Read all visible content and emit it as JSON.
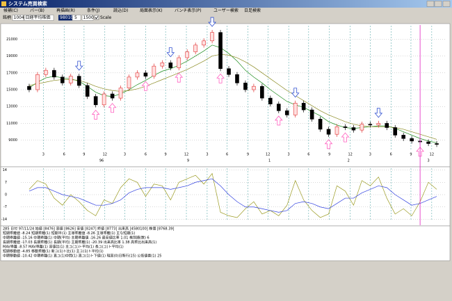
{
  "window": {
    "title": "システム売買検索"
  },
  "menu": [
    "候補(C)",
    "バー(B)",
    "再描画(R)",
    "条件(J)",
    "読込(D)",
    "局面表示(K)",
    "バンチ表示(P)",
    "ユーザー検索",
    "日足検索"
  ],
  "toolbar": {
    "label": "銘柄",
    "code": "1004",
    "name": "日経平均株価",
    "date": "980104",
    "span": "5",
    "count": "1500",
    "scale": "Scale"
  },
  "chart_data": {
    "type": "candlestick",
    "ylim": [
      7900,
      22600
    ],
    "yticks": [
      9000,
      11000,
      13000,
      15000,
      17000,
      19000,
      21000
    ],
    "xlim": [
      -1,
      50
    ],
    "xticks": [
      {
        "value": 1.7,
        "label": "3"
      },
      {
        "value": 4.2,
        "label": "6"
      },
      {
        "value": 6.6,
        "label": "9"
      },
      {
        "value": 9.1,
        "label": "12"
      },
      {
        "value": 11.5,
        "label": "3"
      },
      {
        "value": 14.0,
        "label": "6"
      },
      {
        "value": 16.4,
        "label": "9"
      },
      {
        "value": 18.9,
        "label": "12"
      },
      {
        "value": 21.4,
        "label": "3"
      },
      {
        "value": 23.8,
        "label": "6"
      },
      {
        "value": 26.3,
        "label": "9"
      },
      {
        "value": 28.7,
        "label": "12"
      },
      {
        "value": 31.2,
        "label": "3"
      },
      {
        "value": 33.6,
        "label": "6"
      },
      {
        "value": 36.1,
        "label": "9"
      },
      {
        "value": 38.6,
        "label": "12"
      },
      {
        "value": 41.0,
        "label": "3"
      },
      {
        "value": 43.5,
        "label": "6"
      },
      {
        "value": 45.9,
        "label": "9"
      },
      {
        "value": 48.4,
        "label": "12"
      }
    ],
    "periods": [
      {
        "value": 8.7,
        "label": "96"
      },
      {
        "value": 19.1,
        "label": "9"
      },
      {
        "value": 28.9,
        "label": "1"
      },
      {
        "value": 38.4,
        "label": "2"
      },
      {
        "value": 48.0,
        "label": "3"
      }
    ],
    "grid": true,
    "up_color": "#e03030",
    "down_color": "#000000",
    "candles": [
      [
        15400,
        15700,
        14700,
        15000
      ],
      [
        15000,
        17100,
        14700,
        16800
      ],
      [
        16800,
        17600,
        16500,
        17300
      ],
      [
        17300,
        17600,
        16200,
        16500
      ],
      [
        16500,
        16800,
        15500,
        15800
      ],
      [
        15800,
        16900,
        15500,
        16600
      ],
      [
        16600,
        16900,
        15200,
        15500
      ],
      [
        15500,
        15800,
        13900,
        14200
      ],
      [
        14200,
        14500,
        12900,
        13200
      ],
      [
        13200,
        14800,
        12900,
        14500
      ],
      [
        14500,
        14800,
        13700,
        14000
      ],
      [
        14000,
        15500,
        13700,
        15200
      ],
      [
        15200,
        16800,
        14900,
        16500
      ],
      [
        16500,
        17300,
        16200,
        17000
      ],
      [
        17000,
        17300,
        16300,
        16600
      ],
      [
        16600,
        18100,
        16300,
        17800
      ],
      [
        17800,
        18500,
        17500,
        18200
      ],
      [
        18200,
        18500,
        17300,
        17600
      ],
      [
        17600,
        19100,
        17300,
        18800
      ],
      [
        18800,
        19800,
        18500,
        19500
      ],
      [
        19500,
        20600,
        19200,
        20300
      ],
      [
        20300,
        21100,
        20000,
        20800
      ],
      [
        20800,
        22100,
        20500,
        21800
      ],
      [
        21800,
        22100,
        17200,
        17500
      ],
      [
        17500,
        17800,
        16500,
        16800
      ],
      [
        16800,
        17100,
        15500,
        15800
      ],
      [
        15800,
        16100,
        14700,
        15000
      ],
      [
        15000,
        15700,
        14700,
        15400
      ],
      [
        15400,
        15700,
        13700,
        14000
      ],
      [
        14000,
        14300,
        13000,
        13300
      ],
      [
        13300,
        13600,
        12200,
        12500
      ],
      [
        12500,
        12800,
        11700,
        12000
      ],
      [
        12000,
        13700,
        11700,
        13400
      ],
      [
        13400,
        13700,
        12300,
        12600
      ],
      [
        12600,
        12900,
        11200,
        11500
      ],
      [
        11500,
        11800,
        10000,
        10300
      ],
      [
        10300,
        10600,
        9400,
        9700
      ],
      [
        9700,
        10900,
        9400,
        10600
      ],
      [
        10600,
        10900,
        10200,
        10500
      ],
      [
        10500,
        10800,
        9900,
        10200
      ],
      [
        10200,
        11200,
        9900,
        10900
      ],
      [
        10900,
        11200,
        10500,
        10800
      ],
      [
        10800,
        11300,
        10500,
        11000
      ],
      [
        11000,
        11300,
        10200,
        10500
      ],
      [
        10500,
        10800,
        9300,
        9600
      ],
      [
        9600,
        9900,
        8900,
        9200
      ],
      [
        9200,
        9500,
        8600,
        8900
      ],
      [
        8900,
        9200,
        8500,
        8800
      ],
      [
        8800,
        9100,
        8300,
        8600
      ],
      [
        8600,
        8900,
        8200,
        8500
      ]
    ],
    "series": [
      {
        "color": "#1a8a1a",
        "values": [
          15200,
          15900,
          16400,
          16600,
          16400,
          16300,
          16000,
          15400,
          14700,
          14300,
          14200,
          14500,
          15000,
          15600,
          16100,
          16700,
          17200,
          17500,
          17900,
          18400,
          19000,
          19600,
          20300,
          20000,
          19300,
          18400,
          17300,
          16500,
          15800,
          15000,
          14300,
          13600,
          13200,
          12900,
          12400,
          11900,
          11200,
          10800,
          10500,
          10400,
          10500,
          10600,
          10700,
          10700,
          10400,
          10000,
          9600,
          9200,
          8900,
          8700
        ]
      },
      {
        "color": "#8a8a20",
        "values": [
          15500,
          15700,
          15900,
          16100,
          16200,
          16200,
          16100,
          15800,
          15400,
          15100,
          14900,
          14800,
          14900,
          15100,
          15400,
          15800,
          16200,
          16600,
          17000,
          17400,
          17900,
          18400,
          19000,
          19200,
          19100,
          18800,
          18300,
          17700,
          17000,
          16300,
          15600,
          14900,
          14300,
          13700,
          13100,
          12500,
          12000,
          11600,
          11200,
          10900,
          10700,
          10600,
          10600,
          10600,
          10500,
          10300,
          10000,
          9700,
          9400,
          9100
        ]
      }
    ],
    "sell_signals": [
      6,
      17,
      22,
      32,
      42
    ],
    "buy_signals": [
      8,
      10,
      14,
      18,
      23,
      30,
      36,
      38,
      47
    ],
    "sell_color": "#3050d0",
    "buy_color": "#ff60c0",
    "cursor_index": 47,
    "cursor_color": "#e020c0",
    "oscillator": {
      "ylim": [
        -15,
        15
      ],
      "yticks": [
        -14,
        -7,
        0,
        7,
        14
      ],
      "series": [
        {
          "color": "#9a9a20",
          "values": [
            3,
            8,
            6,
            -2,
            -6,
            0,
            -4,
            -9,
            -12,
            -3,
            -5,
            4,
            9,
            7,
            -1,
            6,
            5,
            -3,
            7,
            9,
            11,
            6,
            12,
            -10,
            -12,
            -13,
            -8,
            -4,
            -11,
            -9,
            -12,
            -6,
            8,
            -3,
            -9,
            -13,
            -11,
            5,
            2,
            -6,
            8,
            5,
            10,
            -2,
            -11,
            -8,
            -12,
            -4,
            7,
            3
          ]
        },
        {
          "color": "#3040e0",
          "values": [
            2,
            4,
            4,
            2,
            0,
            -1,
            -2,
            -4,
            -6,
            -6,
            -5,
            -3,
            1,
            3,
            4,
            4,
            4,
            3,
            4,
            5,
            7,
            8,
            9,
            5,
            0,
            -4,
            -7,
            -7,
            -8,
            -9,
            -10,
            -9,
            -5,
            -4,
            -5,
            -7,
            -8,
            -5,
            -2,
            -2,
            1,
            3,
            5,
            4,
            0,
            -3,
            -6,
            -5,
            -3,
            -1
          ]
        }
      ]
    }
  },
  "info": {
    "lines": [
      "285 日付 97/11/24 始値 [8476] 高値 [8626] 安値 [8247] 終値 [8773] 出来高 [4580100] 株価 [8768.39]",
      "短期乖離値 -8.24 短期乖離(1) 短期平(1) 主導乖離値 -8.26 主導乖離(1) 主な短期(1)",
      "中期乖離値 -15.16 中期乖離(1) 中期(平均) 主期乖離値 -16.26 最安値比率 1.01 株別順(数) 6",
      "長期乖離値 -17.03 長期乖離(1) 長期(平均) 主期乖離(1) -20.39 出来高比率 1.38 高乖比出来高(1)",
      "MAV乖離 -8.57 MAV乖離(1) 高値比(1) 主ユ(ユ)ト平均(1) 長ユ(ユ)ト平均(1)",
      "短期移動値 -4.85 移動乖離(1) 新ユ(1)ト比(1) 主ユ(1)ト平均(1)",
      "中期移動値 -10.42 中期乖離(1) 直ユ(1)中間(1) 直ユ(1)ト下値(1) 現高(0)日新行(15) 公低値番(1) 25"
    ]
  }
}
